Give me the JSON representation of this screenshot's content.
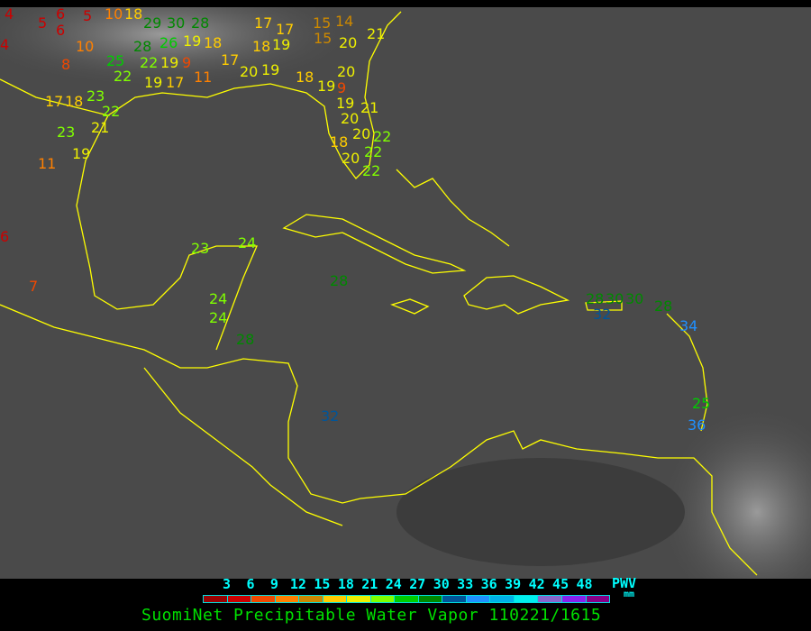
{
  "map": {
    "type": "satellite infrared image with GPS station overlay",
    "coastline_color": "#ffff00",
    "stations": [
      {
        "v": "4"
      },
      {
        "v": "6"
      },
      {
        "v": "5"
      },
      {
        "v": "10"
      },
      {
        "v": "18"
      },
      {
        "v": "29"
      },
      {
        "v": "30"
      },
      {
        "v": "28"
      },
      {
        "v": "17"
      },
      {
        "v": "17"
      },
      {
        "v": "15"
      },
      {
        "v": "14"
      },
      {
        "v": "4"
      },
      {
        "v": "5"
      },
      {
        "v": "6"
      },
      {
        "v": "10"
      },
      {
        "v": "28"
      },
      {
        "v": "26"
      },
      {
        "v": "19"
      },
      {
        "v": "18"
      },
      {
        "v": "18"
      },
      {
        "v": "19"
      },
      {
        "v": "15"
      },
      {
        "v": "20"
      },
      {
        "v": "21"
      },
      {
        "v": "8"
      },
      {
        "v": "25"
      },
      {
        "v": "22"
      },
      {
        "v": "19"
      },
      {
        "v": "9"
      },
      {
        "v": "17"
      },
      {
        "v": "20"
      },
      {
        "v": "19"
      },
      {
        "v": "18"
      },
      {
        "v": "20"
      },
      {
        "v": "22"
      },
      {
        "v": "19"
      },
      {
        "v": "17"
      },
      {
        "v": "11"
      },
      {
        "v": "19"
      },
      {
        "v": "9"
      },
      {
        "v": "17"
      },
      {
        "v": "18"
      },
      {
        "v": "23"
      },
      {
        "v": "22"
      },
      {
        "v": "19"
      },
      {
        "v": "20"
      },
      {
        "v": "21"
      },
      {
        "v": "23"
      },
      {
        "v": "21"
      },
      {
        "v": "20"
      },
      {
        "v": "22"
      },
      {
        "v": "19"
      },
      {
        "v": "18"
      },
      {
        "v": "20"
      },
      {
        "v": "22"
      },
      {
        "v": "22"
      },
      {
        "v": "11"
      },
      {
        "v": "6"
      },
      {
        "v": "7"
      },
      {
        "v": "23"
      },
      {
        "v": "24"
      },
      {
        "v": "28"
      },
      {
        "v": "24"
      },
      {
        "v": "24"
      },
      {
        "v": "28"
      },
      {
        "v": "32"
      },
      {
        "v": "28"
      },
      {
        "v": "30"
      },
      {
        "v": "30"
      },
      {
        "v": "32"
      },
      {
        "v": "28"
      },
      {
        "v": "34"
      },
      {
        "v": "25"
      },
      {
        "v": "36"
      }
    ]
  },
  "legend": {
    "ticks": [
      "3",
      "6",
      "9",
      "12",
      "15",
      "18",
      "21",
      "24",
      "27",
      "30",
      "33",
      "36",
      "39",
      "42",
      "45",
      "48"
    ],
    "colors": [
      "#9a0000",
      "#cc0000",
      "#f04800",
      "#ff8000",
      "#cc8800",
      "#ffcc00",
      "#eef000",
      "#80ff00",
      "#00cc00",
      "#008800",
      "#005599",
      "#2090ff",
      "#00b0e8",
      "#00eeee",
      "#8866cc",
      "#8822ee",
      "#880088"
    ],
    "unit_label": "PWV",
    "unit": "mm",
    "title": "SuomiNet Precipitable Water Vapor 110221/1615"
  }
}
